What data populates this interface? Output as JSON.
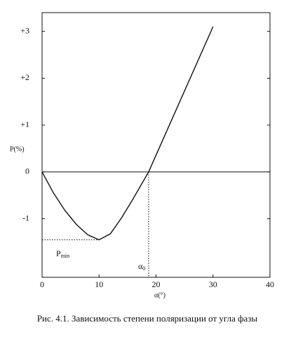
{
  "chart_data": {
    "type": "line",
    "ylabel": "P(%)",
    "xlabel": "α(°)",
    "caption": "Рис. 4.1. Зависимость степени поляризации от угла фазы",
    "annotations": [
      {
        "text": "P",
        "sub": "min"
      },
      {
        "text": "α",
        "sub": "0"
      }
    ],
    "series": [
      {
        "color": "#111111",
        "x": [
          0,
          2,
          4,
          6,
          8,
          10,
          12,
          14,
          16,
          18.7,
          30
        ],
        "values": [
          0,
          -0.45,
          -0.82,
          -1.12,
          -1.34,
          -1.45,
          -1.32,
          -0.97,
          -0.57,
          0,
          3.1
        ]
      }
    ],
    "xlim": [
      0,
      40
    ],
    "xticks": [
      0,
      10,
      20,
      30,
      40
    ],
    "ylim": [
      -2.25,
      3.4
    ],
    "yticks": [
      {
        "value": 3,
        "label": "+3"
      },
      {
        "value": 2,
        "label": "+2"
      },
      {
        "value": 1,
        "label": "+1"
      },
      0,
      -1
    ]
  }
}
